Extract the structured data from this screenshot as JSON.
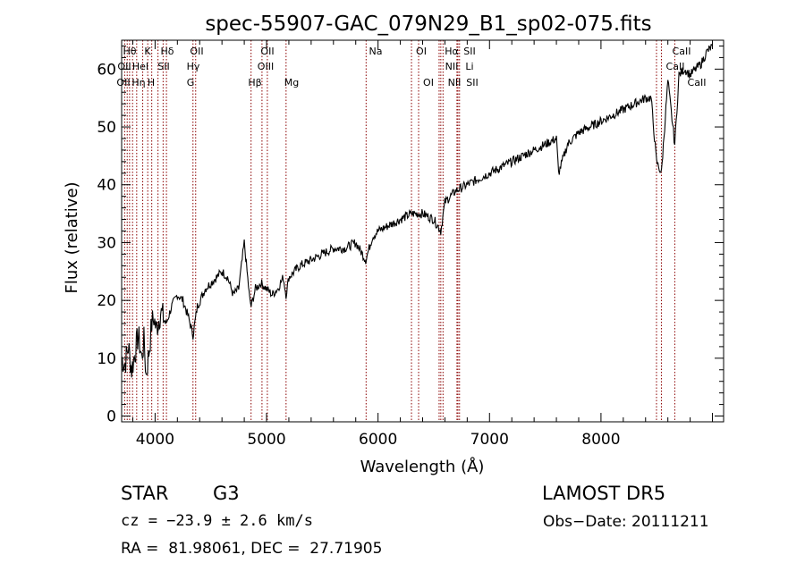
{
  "chart_data": {
    "type": "line",
    "title": "spec-55907-GAC_079N29_B1_sp02-075.fits",
    "xlabel": "Wavelength (Å)",
    "ylabel": "Flux (relative)",
    "xlim": [
      3700,
      9100
    ],
    "ylim": [
      -1,
      65
    ],
    "xticks": [
      4000,
      5000,
      6000,
      7000,
      8000
    ],
    "yticks": [
      0,
      10,
      20,
      30,
      40,
      50,
      60
    ],
    "line_color": "#000000",
    "marker_color": "#8b0000",
    "series": [
      {
        "x": [
          3700,
          3730,
          3760,
          3790,
          3820,
          3850,
          3880,
          3900,
          3920,
          3950,
          3970,
          3990,
          4010,
          4050,
          4100,
          4150,
          4200,
          4250,
          4300,
          4340,
          4380,
          4450,
          4500,
          4550,
          4600,
          4650,
          4700,
          4750,
          4800,
          4850,
          4862,
          4900,
          4950,
          5000,
          5050,
          5100,
          5150,
          5175,
          5200,
          5300,
          5400,
          5500,
          5600,
          5700,
          5800,
          5890,
          5950,
          6000,
          6100,
          6200,
          6300,
          6400,
          6500,
          6563,
          6600,
          6700,
          6800,
          6900,
          7000,
          7100,
          7200,
          7300,
          7400,
          7500,
          7600,
          7620,
          7700,
          7800,
          7900,
          8000,
          8100,
          8200,
          8300,
          8400,
          8450,
          8498,
          8542,
          8600,
          8662,
          8700,
          8750,
          8800,
          8850,
          8900,
          8950,
          9000
        ],
        "y": [
          10,
          9,
          12,
          8,
          11,
          14,
          10,
          13,
          7,
          12,
          16,
          17,
          15,
          18,
          16,
          19,
          21,
          20,
          17,
          14,
          19,
          22,
          23,
          24,
          25,
          24,
          21,
          22,
          30,
          20,
          19,
          22,
          23,
          22,
          21,
          22,
          24,
          21,
          24,
          26,
          27,
          28,
          29,
          29,
          30,
          27,
          31,
          32,
          33,
          34,
          35,
          35,
          34,
          32,
          37,
          39,
          40,
          41,
          42,
          43,
          44,
          45,
          46,
          47,
          48,
          42,
          47,
          49,
          50,
          51,
          52,
          53,
          54,
          55,
          55,
          44,
          42,
          58,
          47,
          59,
          60,
          59,
          60,
          61,
          63,
          64
        ]
      }
    ],
    "lines_top": [
      "Hθ",
      "K",
      "Hδ",
      "OII",
      "OII",
      "Na",
      "OI",
      "Hα",
      "SII",
      "CaII"
    ],
    "lines_mid": [
      "OII",
      "HeI",
      "SII",
      "Hγ",
      "OIII",
      "NII",
      "Li",
      "CaII"
    ],
    "lines_bot": [
      "OII",
      "Hη",
      "H",
      "G",
      "Hβ",
      "Mg",
      "OI",
      "NII",
      "SII",
      "CaII"
    ]
  },
  "info": {
    "class": "STAR",
    "subclass": "G3",
    "release": "LAMOST DR5",
    "cz": "cz = −23.9 ± 2.6 km/s",
    "obsdate": "Obs−Date: 20111211",
    "radec": "RA =  81.98061, DEC =  27.71905"
  }
}
